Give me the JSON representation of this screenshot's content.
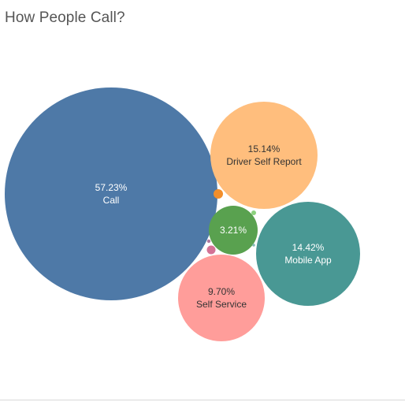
{
  "title": "How People Call?",
  "chart_data": {
    "type": "bubble",
    "title": "How People Call?",
    "bubbles": [
      {
        "id": "call",
        "label": "Call",
        "pct_label": "57.23%",
        "value": 57.23,
        "color": "#4e79a7",
        "text_color": "#ffffff",
        "show_label": true
      },
      {
        "id": "driver-self-report",
        "label": "Driver Self Report",
        "pct_label": "15.14%",
        "value": 15.14,
        "color": "#ffbe7d",
        "text_color": "#333333",
        "show_label": true
      },
      {
        "id": "mobile-app",
        "label": "Mobile App",
        "pct_label": "14.42%",
        "value": 14.42,
        "color": "#499894",
        "text_color": "#ffffff",
        "show_label": true
      },
      {
        "id": "self-service",
        "label": "Self Service",
        "pct_label": "9.70%",
        "value": 9.7,
        "color": "#ff9d9a",
        "text_color": "#333333",
        "show_label": true
      },
      {
        "id": "green",
        "label": "",
        "pct_label": "3.21%",
        "value": 3.21,
        "color": "#59a14f",
        "text_color": "#ffffff",
        "show_label": true
      },
      {
        "id": "orange-small",
        "label": "",
        "pct_label": "",
        "value": null,
        "color": "#f28e2b",
        "text_color": "#ffffff",
        "show_label": false
      },
      {
        "id": "pink-small",
        "label": "",
        "pct_label": "",
        "value": null,
        "color": "#d37295",
        "text_color": "#ffffff",
        "show_label": false
      },
      {
        "id": "green-tiny",
        "label": "",
        "pct_label": "",
        "value": null,
        "color": "#8cd17d",
        "text_color": "#ffffff",
        "show_label": false
      },
      {
        "id": "rose-tiny",
        "label": "",
        "pct_label": "",
        "value": null,
        "color": "#b07aa1",
        "text_color": "#ffffff",
        "show_label": false
      },
      {
        "id": "teal-tiny",
        "label": "",
        "pct_label": "",
        "value": null,
        "color": "#86bcb6",
        "text_color": "#ffffff",
        "show_label": false
      }
    ]
  }
}
